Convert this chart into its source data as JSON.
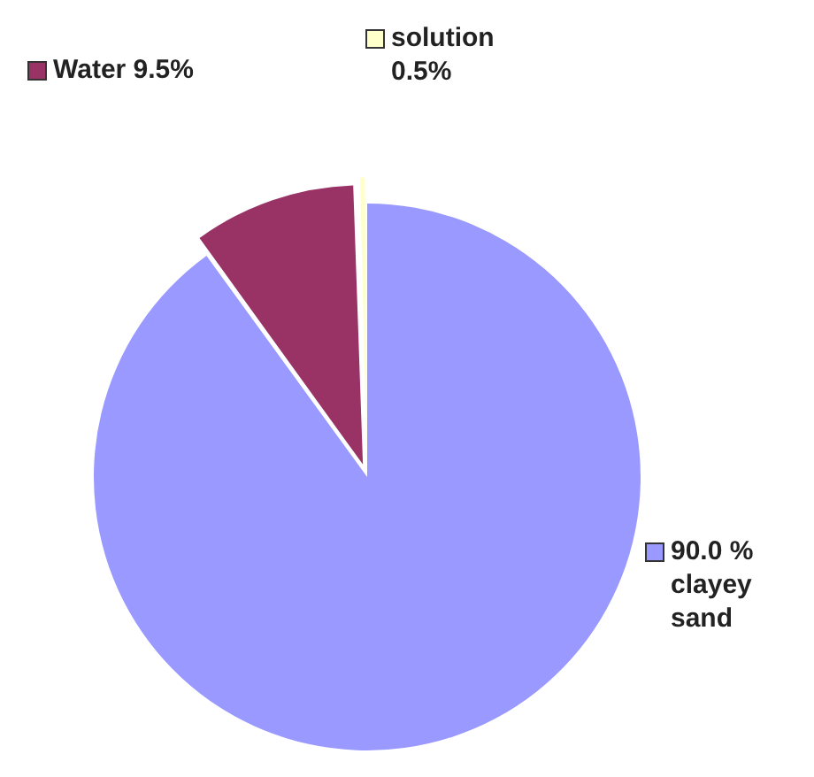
{
  "chart_data": {
    "type": "pie",
    "categories": [
      "90.0 % clayey sand",
      "Water 9.5%",
      "solution 0.5%"
    ],
    "values": [
      90.0,
      9.5,
      0.5
    ],
    "colors": [
      "#9999ff",
      "#993366",
      "#ffffcc"
    ],
    "legend": "top"
  }
}
